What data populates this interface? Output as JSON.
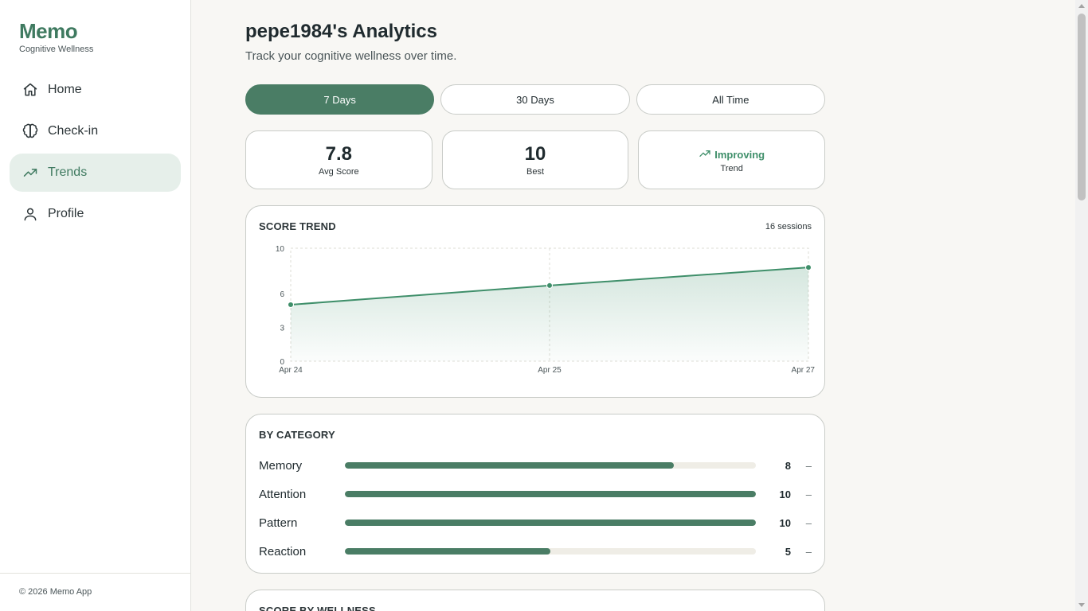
{
  "app": {
    "name": "Memo",
    "tagline": "Cognitive Wellness",
    "footer": "© 2026 Memo App"
  },
  "nav": [
    {
      "label": "Home",
      "icon": "home-icon",
      "active": false
    },
    {
      "label": "Check-in",
      "icon": "brain-icon",
      "active": false
    },
    {
      "label": "Trends",
      "icon": "trending-up-icon",
      "active": true
    },
    {
      "label": "Profile",
      "icon": "user-icon",
      "active": false
    }
  ],
  "header": {
    "title": "pepe1984's Analytics",
    "subtitle": "Track your cognitive wellness over time."
  },
  "range_tabs": [
    {
      "label": "7 Days",
      "active": true
    },
    {
      "label": "30 Days",
      "active": false
    },
    {
      "label": "All Time",
      "active": false
    }
  ],
  "stats": {
    "avg": {
      "value": "7.8",
      "label": "Avg Score"
    },
    "best": {
      "value": "10",
      "label": "Best"
    },
    "trend": {
      "value": "Improving",
      "label": "Trend",
      "icon": "trending-up-icon"
    }
  },
  "score_trend": {
    "title": "SCORE TREND",
    "sessions": "16 sessions"
  },
  "chart_data": {
    "type": "area",
    "title": "SCORE TREND",
    "x": [
      "Apr 24",
      "Apr 25",
      "Apr 27"
    ],
    "values": [
      5,
      6.7,
      8.3
    ],
    "yticks": [
      0,
      3,
      6,
      10
    ],
    "ylim": [
      0,
      10
    ],
    "grid": true,
    "color": "#3f8f6a"
  },
  "categories": {
    "title": "BY CATEGORY",
    "items": [
      {
        "name": "Memory",
        "value": 8,
        "display": "8",
        "fraction": 0.8,
        "change": "–"
      },
      {
        "name": "Attention",
        "value": 10,
        "display": "10",
        "fraction": 1.0,
        "change": "–"
      },
      {
        "name": "Pattern",
        "value": 10,
        "display": "10",
        "fraction": 1.0,
        "change": "–"
      },
      {
        "name": "Reaction",
        "value": 5,
        "display": "5",
        "fraction": 0.5,
        "change": "–"
      }
    ]
  },
  "wellness": {
    "title": "SCORE BY WELLNESS"
  },
  "colors": {
    "accent": "#4a7d65",
    "accent_light": "#e6efea",
    "trend_green": "#3f8f6a"
  }
}
